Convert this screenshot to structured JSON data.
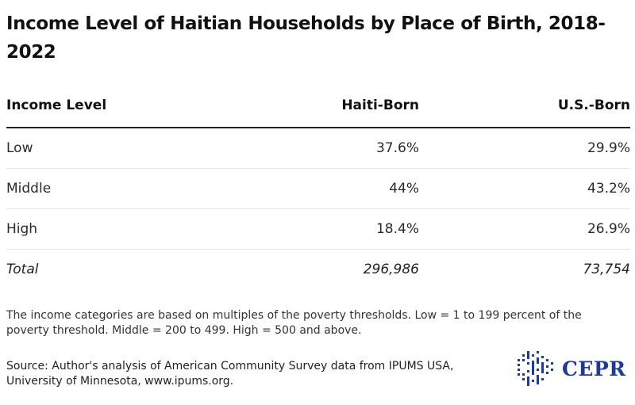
{
  "title": "Income Level of Haitian Households by Place of Birth, 2018-2022",
  "chart_data": {
    "type": "table",
    "title": "Income Level of Haitian Households by Place of Birth, 2018-2022",
    "columns": [
      "Income Level",
      "Haiti-Born",
      "U.S.-Born"
    ],
    "rows": [
      {
        "label": "Low",
        "values": [
          "37.6%",
          "29.9%"
        ]
      },
      {
        "label": "Middle",
        "values": [
          "44%",
          "43.2%"
        ]
      },
      {
        "label": "High",
        "values": [
          "18.4%",
          "26.9%"
        ]
      },
      {
        "label": "Total",
        "values": [
          "296,986",
          "73,754"
        ]
      }
    ]
  },
  "note": "The income categories are based on multiples of the poverty thresholds. Low = 1 to 199 percent of the poverty threshold. Middle = 200 to 499. High = 500 and above.",
  "source": "Source: Author's analysis of American Community Survey data from IPUMS USA, University of Minnesota, www.ipums.org.",
  "logo": {
    "text": "CEPR",
    "color": "#1f3a93"
  }
}
